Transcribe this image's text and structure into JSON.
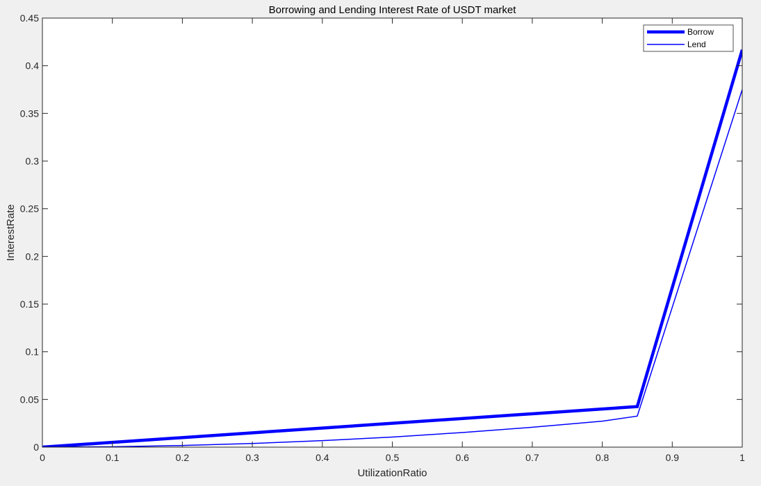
{
  "chart_data": {
    "type": "line",
    "title": "Borrowing and Lending Interest Rate of USDT market",
    "xlabel": "UtilizationRatio",
    "ylabel": "InterestRate",
    "xlim": [
      0,
      1
    ],
    "ylim": [
      0,
      0.45
    ],
    "xticks": [
      0,
      0.1,
      0.2,
      0.3,
      0.4,
      0.5,
      0.6,
      0.7,
      0.8,
      0.9,
      1
    ],
    "yticks": [
      0,
      0.05,
      0.1,
      0.15,
      0.2,
      0.25,
      0.3,
      0.35,
      0.4,
      0.45
    ],
    "xtick_labels": [
      "0",
      "0.1",
      "0.2",
      "0.3",
      "0.4",
      "0.5",
      "0.6",
      "0.7",
      "0.8",
      "0.9",
      "1"
    ],
    "ytick_labels": [
      "0",
      "0.05",
      "0.1",
      "0.15",
      "0.2",
      "0.25",
      "0.3",
      "0.35",
      "0.4",
      "0.45"
    ],
    "grid": false,
    "legend_position": "top-right",
    "series": [
      {
        "name": "Borrow",
        "color": "#0000ff",
        "style": "thick",
        "points": [
          [
            0,
            0
          ],
          [
            0.85,
            0.0425
          ],
          [
            1,
            0.4167
          ]
        ]
      },
      {
        "name": "Lend",
        "color": "#0000ff",
        "style": "thin",
        "points": [
          [
            0,
            0
          ],
          [
            0.1,
            0.0004
          ],
          [
            0.2,
            0.0017
          ],
          [
            0.3,
            0.0038
          ],
          [
            0.4,
            0.0068
          ],
          [
            0.5,
            0.0106
          ],
          [
            0.6,
            0.0153
          ],
          [
            0.7,
            0.0208
          ],
          [
            0.8,
            0.0272
          ],
          [
            0.85,
            0.0325
          ],
          [
            1,
            0.375
          ]
        ]
      }
    ]
  }
}
